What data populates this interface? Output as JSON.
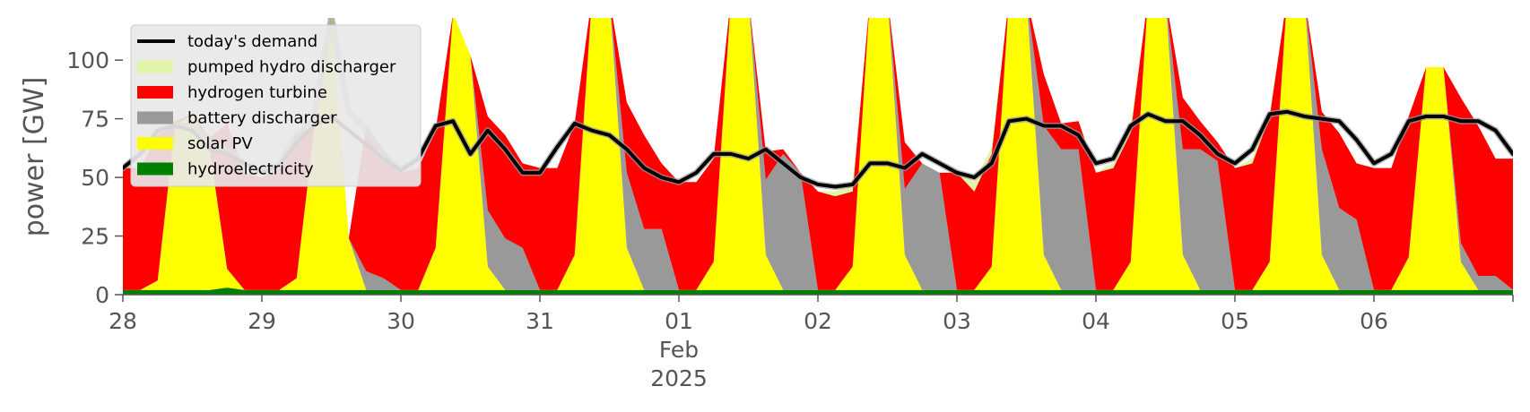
{
  "chart_data": {
    "type": "area",
    "title": "",
    "ylabel": "power [GW]",
    "xlabel": "",
    "ylim": [
      0,
      118
    ],
    "yticks": [
      0,
      25,
      50,
      75,
      100
    ],
    "xlim": [
      "2025-01-28T00:00",
      "2025-02-07T00:00"
    ],
    "x_ticks": [
      {
        "x": "2025-01-28T00:00",
        "label": "28"
      },
      {
        "x": "2025-01-29T00:00",
        "label": "29"
      },
      {
        "x": "2025-01-30T00:00",
        "label": "30"
      },
      {
        "x": "2025-01-31T00:00",
        "label": "31"
      },
      {
        "x": "2025-02-01T00:00",
        "label": "01",
        "label2": "Feb",
        "label3": "2025"
      },
      {
        "x": "2025-02-02T00:00",
        "label": "02"
      },
      {
        "x": "2025-02-03T00:00",
        "label": "03"
      },
      {
        "x": "2025-02-04T00:00",
        "label": "04"
      },
      {
        "x": "2025-02-05T00:00",
        "label": "05"
      },
      {
        "x": "2025-02-06T00:00",
        "label": "06"
      }
    ],
    "grid": false,
    "legend_position": "top-left",
    "legend": [
      {
        "name": "today's demand",
        "color": "#000000",
        "kind": "line"
      },
      {
        "name": "pumped hydro discharger",
        "color": "#e0f5a8",
        "kind": "patch"
      },
      {
        "name": "hydrogen turbine",
        "color": "#ff0000",
        "kind": "patch"
      },
      {
        "name": "battery discharger",
        "color": "#999999",
        "kind": "patch"
      },
      {
        "name": "solar PV",
        "color": "#ffff00",
        "kind": "patch"
      },
      {
        "name": "hydroelectricity",
        "color": "#008000",
        "kind": "patch"
      }
    ],
    "x": [
      "2025-01-28T00:00",
      "2025-01-28T03:00",
      "2025-01-28T06:00",
      "2025-01-28T09:00",
      "2025-01-28T12:00",
      "2025-01-28T15:00",
      "2025-01-28T18:00",
      "2025-01-28T21:00",
      "2025-01-29T00:00",
      "2025-01-29T03:00",
      "2025-01-29T06:00",
      "2025-01-29T09:00",
      "2025-01-29T12:00",
      "2025-01-29T15:00",
      "2025-01-29T18:00",
      "2025-01-29T21:00",
      "2025-01-30T00:00",
      "2025-01-30T03:00",
      "2025-01-30T06:00",
      "2025-01-30T09:00",
      "2025-01-30T12:00",
      "2025-01-30T15:00",
      "2025-01-30T18:00",
      "2025-01-30T21:00",
      "2025-01-31T00:00",
      "2025-01-31T03:00",
      "2025-01-31T06:00",
      "2025-01-31T09:00",
      "2025-01-31T12:00",
      "2025-01-31T15:00",
      "2025-01-31T18:00",
      "2025-01-31T21:00",
      "2025-02-01T00:00",
      "2025-02-01T03:00",
      "2025-02-01T06:00",
      "2025-02-01T09:00",
      "2025-02-01T12:00",
      "2025-02-01T15:00",
      "2025-02-01T18:00",
      "2025-02-01T21:00",
      "2025-02-02T00:00",
      "2025-02-02T03:00",
      "2025-02-02T06:00",
      "2025-02-02T09:00",
      "2025-02-02T12:00",
      "2025-02-02T15:00",
      "2025-02-02T18:00",
      "2025-02-02T21:00",
      "2025-02-03T00:00",
      "2025-02-03T03:00",
      "2025-02-03T06:00",
      "2025-02-03T09:00",
      "2025-02-03T12:00",
      "2025-02-03T15:00",
      "2025-02-03T18:00",
      "2025-02-03T21:00",
      "2025-02-04T00:00",
      "2025-02-04T03:00",
      "2025-02-04T06:00",
      "2025-02-04T09:00",
      "2025-02-04T12:00",
      "2025-02-04T15:00",
      "2025-02-04T18:00",
      "2025-02-04T21:00",
      "2025-02-05T00:00",
      "2025-02-05T03:00",
      "2025-02-05T06:00",
      "2025-02-05T09:00",
      "2025-02-05T12:00",
      "2025-02-05T15:00",
      "2025-02-05T18:00",
      "2025-02-05T21:00",
      "2025-02-06T00:00",
      "2025-02-06T03:00",
      "2025-02-06T06:00",
      "2025-02-06T09:00",
      "2025-02-06T12:00",
      "2025-02-06T15:00",
      "2025-02-06T18:00",
      "2025-02-06T21:00",
      "2025-02-07T00:00"
    ],
    "stack_order": [
      "hydroelectricity",
      "solar PV",
      "battery discharger",
      "hydrogen turbine",
      "pumped hydro discharger"
    ],
    "series": [
      {
        "name": "hydroelectricity",
        "color": "#008000",
        "type": "area",
        "values": [
          2,
          2,
          2,
          2,
          2,
          2,
          3,
          2,
          2,
          2,
          2,
          2,
          2,
          2,
          2,
          2,
          2,
          2,
          2,
          2,
          2,
          2,
          2,
          2,
          2,
          2,
          2,
          2,
          2,
          2,
          2,
          2,
          2,
          2,
          2,
          2,
          2,
          2,
          2,
          2,
          2,
          2,
          2,
          2,
          2,
          2,
          2,
          2,
          2,
          2,
          2,
          2,
          2,
          2,
          2,
          2,
          2,
          2,
          2,
          2,
          2,
          2,
          2,
          2,
          2,
          2,
          2,
          2,
          2,
          2,
          2,
          2,
          2,
          2,
          2,
          2,
          2,
          2,
          2,
          2,
          2
        ]
      },
      {
        "name": "solar PV",
        "color": "#ffff00",
        "type": "area",
        "values": [
          0,
          0,
          4,
          70,
          75,
          60,
          8,
          0,
          0,
          0,
          5,
          68,
          118,
          22,
          0,
          0,
          0,
          0,
          18,
          118,
          100,
          10,
          0,
          0,
          0,
          0,
          15,
          125,
          125,
          18,
          0,
          0,
          0,
          0,
          12,
          125,
          125,
          15,
          0,
          0,
          0,
          0,
          10,
          125,
          125,
          15,
          0,
          0,
          0,
          0,
          10,
          125,
          125,
          15,
          0,
          0,
          0,
          0,
          12,
          125,
          125,
          15,
          0,
          0,
          0,
          0,
          12,
          125,
          125,
          15,
          0,
          0,
          0,
          0,
          14,
          95,
          95,
          12,
          0,
          0,
          0
        ]
      },
      {
        "name": "battery discharger",
        "color": "#999999",
        "type": "area",
        "values": [
          0,
          0,
          0,
          0,
          0,
          0,
          0,
          0,
          0,
          0,
          0,
          0,
          0,
          0,
          8,
          5,
          0,
          0,
          0,
          0,
          0,
          24,
          22,
          18,
          0,
          0,
          0,
          0,
          0,
          32,
          26,
          26,
          0,
          0,
          0,
          0,
          0,
          32,
          58,
          50,
          0,
          0,
          0,
          0,
          0,
          28,
          54,
          50,
          0,
          0,
          0,
          0,
          0,
          55,
          60,
          60,
          0,
          0,
          0,
          0,
          0,
          45,
          60,
          55,
          0,
          0,
          0,
          0,
          0,
          45,
          35,
          30,
          0,
          0,
          0,
          0,
          0,
          8,
          6,
          6,
          0
        ]
      },
      {
        "name": "hydrogen turbine",
        "color": "#ff0000",
        "type": "area",
        "values": [
          52,
          52,
          62,
          2,
          0,
          5,
          62,
          50,
          48,
          52,
          62,
          2,
          0,
          0,
          62,
          55,
          50,
          52,
          50,
          0,
          0,
          40,
          44,
          36,
          52,
          52,
          56,
          0,
          0,
          30,
          40,
          28,
          46,
          46,
          44,
          0,
          0,
          12,
          2,
          0,
          42,
          40,
          32,
          0,
          0,
          20,
          0,
          0,
          50,
          42,
          48,
          0,
          0,
          22,
          11,
          12,
          50,
          52,
          55,
          0,
          0,
          22,
          12,
          8,
          52,
          54,
          62,
          0,
          0,
          16,
          32,
          24,
          52,
          52,
          60,
          0,
          0,
          62,
          64,
          50,
          56
        ]
      },
      {
        "name": "pumped hydro discharger",
        "color": "#e0f5a8",
        "type": "area",
        "values": [
          0,
          0,
          0,
          0,
          0,
          0,
          0,
          0,
          0,
          0,
          0,
          0,
          0,
          0,
          0,
          0,
          0,
          0,
          0,
          0,
          0,
          0,
          0,
          0,
          0,
          0,
          0,
          0,
          0,
          0,
          0,
          0,
          0,
          0,
          0,
          0,
          0,
          0,
          0,
          0,
          0,
          2,
          4,
          0,
          0,
          0,
          0,
          0,
          0,
          4,
          3,
          0,
          0,
          0,
          0,
          0,
          0,
          2,
          3,
          0,
          0,
          0,
          0,
          0,
          0,
          2,
          2,
          0,
          0,
          0,
          0,
          0,
          0,
          0,
          0,
          0,
          0,
          0,
          0,
          0,
          0
        ]
      },
      {
        "name": "today's demand",
        "color": "#000000",
        "type": "line",
        "values": [
          54,
          60,
          70,
          72,
          70,
          62,
          60,
          56,
          52,
          55,
          65,
          72,
          76,
          70,
          64,
          58,
          53,
          58,
          72,
          74,
          60,
          70,
          62,
          52,
          52,
          63,
          73,
          70,
          68,
          62,
          54,
          50,
          48,
          52,
          60,
          60,
          58,
          62,
          56,
          50,
          47,
          46,
          47,
          56,
          56,
          54,
          60,
          56,
          52,
          50,
          56,
          74,
          75,
          72,
          72,
          68,
          56,
          58,
          72,
          77,
          74,
          74,
          68,
          60,
          56,
          62,
          77,
          78,
          76,
          75,
          74,
          66,
          56,
          60,
          74,
          76,
          76,
          74,
          74,
          70,
          60
        ]
      },
      {
        "name": "",
        "color": "#999999",
        "type": "line",
        "values": [
          54,
          60,
          70,
          72,
          72,
          66,
          62,
          56,
          53,
          55,
          68,
          75,
          118,
          78,
          70,
          60,
          53,
          58,
          72,
          74,
          60,
          70,
          62,
          52,
          52,
          63,
          73,
          70,
          68,
          62,
          54,
          50,
          48,
          52,
          60,
          60,
          58,
          62,
          56,
          50,
          47,
          46,
          47,
          56,
          56,
          54,
          60,
          56,
          52,
          50,
          56,
          74,
          75,
          72,
          72,
          68,
          56,
          58,
          72,
          77,
          74,
          74,
          68,
          60,
          56,
          62,
          77,
          78,
          76,
          75,
          74,
          66,
          56,
          60,
          74,
          76,
          76,
          74,
          74,
          70,
          60
        ]
      }
    ]
  }
}
